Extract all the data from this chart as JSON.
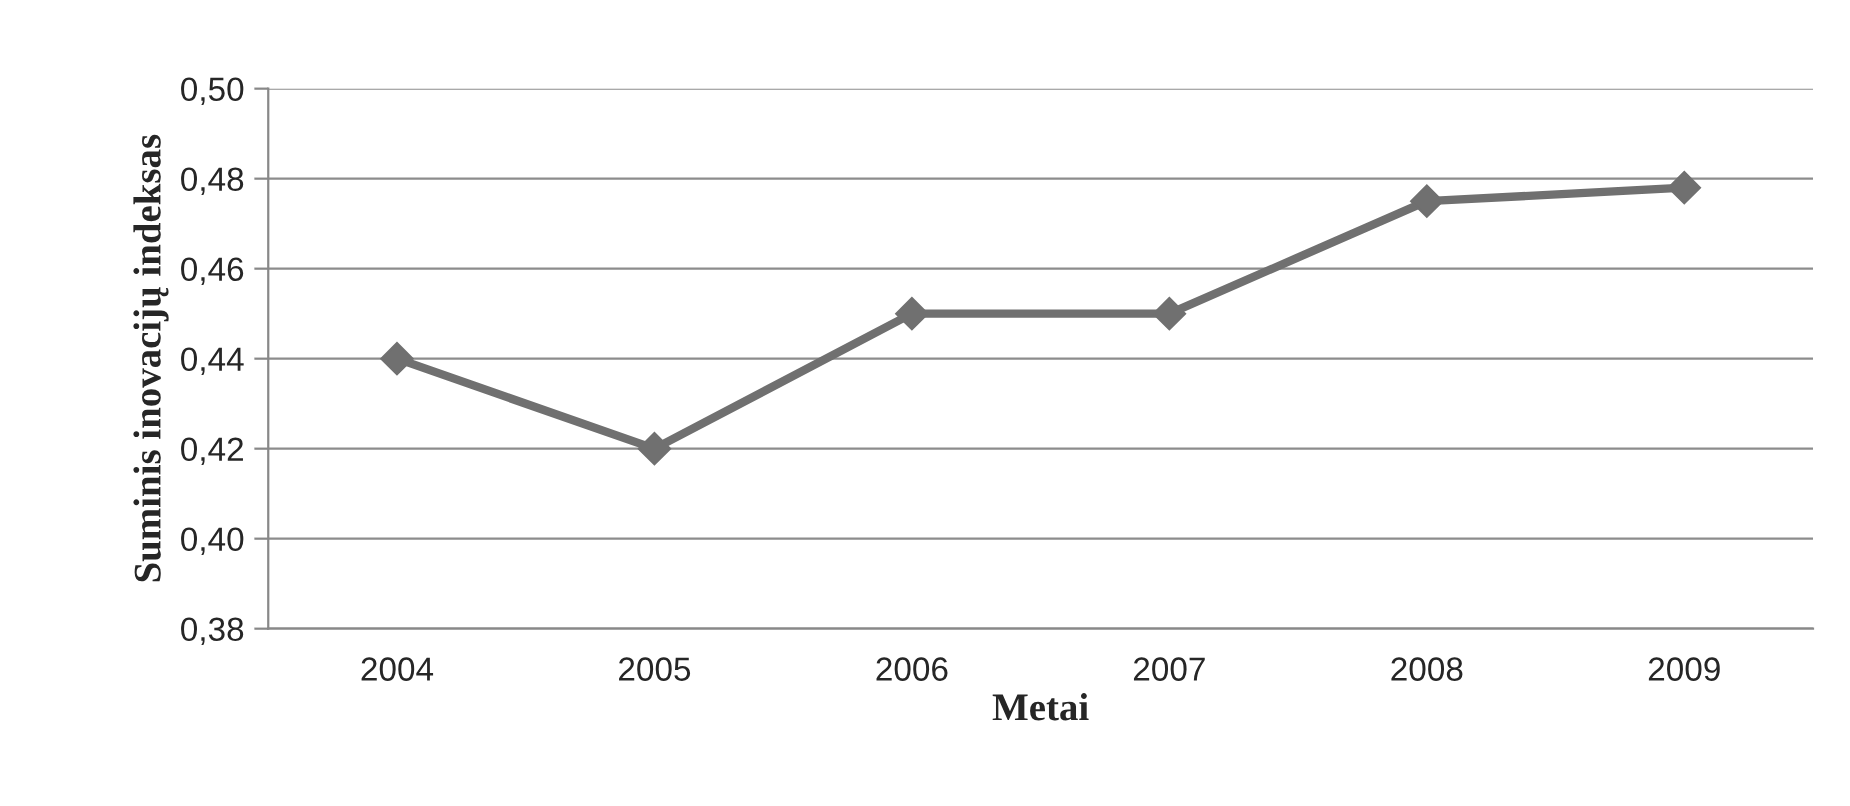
{
  "chart_data": {
    "type": "line",
    "xlabel": "Metai",
    "ylabel": "Suminis inovacijų indeksas",
    "categories": [
      "2004",
      "2005",
      "2006",
      "2007",
      "2008",
      "2009"
    ],
    "series": [
      {
        "color": "#707070",
        "values": [
          0.44,
          0.42,
          0.45,
          0.45,
          0.475,
          0.478
        ]
      }
    ],
    "ylim": [
      0.38,
      0.5
    ],
    "yticks": [
      {
        "value": 0.38,
        "label": "0,38"
      },
      {
        "value": 0.4,
        "label": "0,40"
      },
      {
        "value": 0.42,
        "label": "0,42"
      },
      {
        "value": 0.44,
        "label": "0,44"
      },
      {
        "value": 0.46,
        "label": "0,46"
      },
      {
        "value": 0.48,
        "label": "0,48"
      },
      {
        "value": 0.5,
        "label": "0,50"
      }
    ],
    "grid": "y",
    "marker": "diamond",
    "line_style": "solid"
  }
}
